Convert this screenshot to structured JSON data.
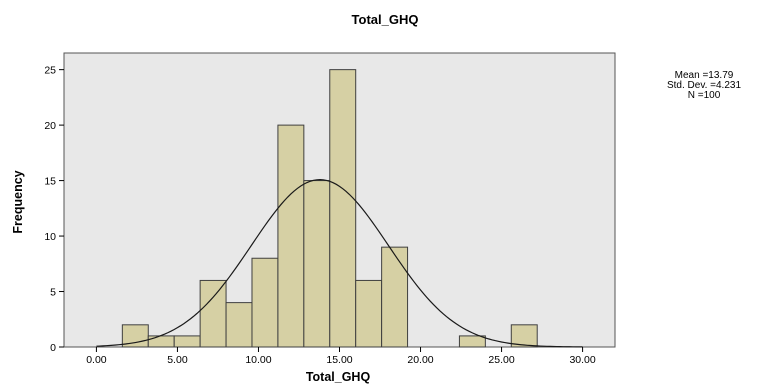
{
  "chart_data": {
    "type": "bar",
    "subtype": "histogram",
    "title": "Total_GHQ",
    "xlabel": "Total_GHQ",
    "ylabel": "Frequency",
    "xlim": [
      -2,
      32
    ],
    "ylim": [
      0,
      26.5
    ],
    "x_ticks": [
      0,
      5,
      10,
      15,
      20,
      25,
      30
    ],
    "x_tick_labels": [
      "0.00",
      "5.00",
      "10.00",
      "15.00",
      "20.00",
      "25.00",
      "30.00"
    ],
    "y_ticks": [
      0,
      5,
      10,
      15,
      20,
      25
    ],
    "y_tick_labels": [
      "0",
      "5",
      "10",
      "15",
      "20",
      "25"
    ],
    "bin_width": 1.6,
    "bins": [
      {
        "start": 1.6,
        "end": 3.2,
        "count": 2
      },
      {
        "start": 3.2,
        "end": 4.8,
        "count": 1
      },
      {
        "start": 4.8,
        "end": 6.4,
        "count": 1
      },
      {
        "start": 6.4,
        "end": 8.0,
        "count": 6
      },
      {
        "start": 8.0,
        "end": 9.6,
        "count": 4
      },
      {
        "start": 9.6,
        "end": 11.2,
        "count": 8
      },
      {
        "start": 11.2,
        "end": 12.8,
        "count": 20
      },
      {
        "start": 12.8,
        "end": 14.4,
        "count": 15
      },
      {
        "start": 14.4,
        "end": 16.0,
        "count": 25
      },
      {
        "start": 16.0,
        "end": 17.6,
        "count": 6
      },
      {
        "start": 17.6,
        "end": 19.2,
        "count": 9
      },
      {
        "start": 22.4,
        "end": 24.0,
        "count": 1
      },
      {
        "start": 25.6,
        "end": 27.2,
        "count": 2
      }
    ],
    "normal_curve": {
      "mean": 13.79,
      "sd": 4.231,
      "n": 100
    },
    "stats_lines": [
      "Mean =13.79",
      "Std. Dev. =4.231",
      "N =100"
    ],
    "grid": false,
    "colors": {
      "plot_background": "#e8e8e8",
      "bar_fill": "#d6d0a4",
      "bar_stroke": "#3f3f3f",
      "curve": "#1a1a1a",
      "frame": "#555555"
    }
  }
}
